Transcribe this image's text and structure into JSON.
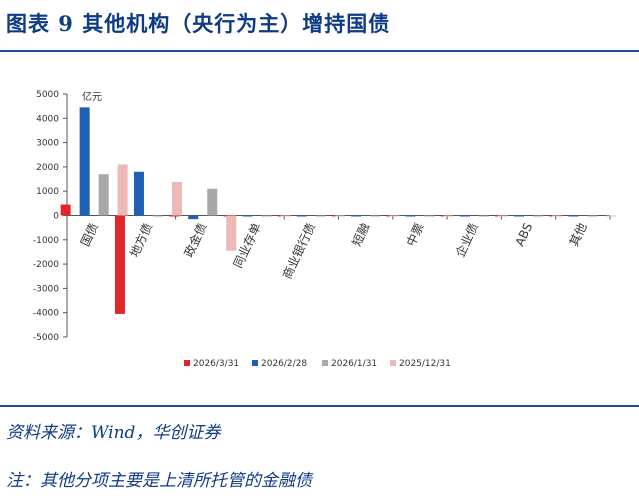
{
  "figure": {
    "title": "图表 9    其他机构（央行为主）增持国债",
    "source": "资料来源：Wind，华创证券",
    "note": "注：其他分项主要是上清所托管的金融债"
  },
  "chart_data": {
    "type": "bar",
    "unit_label": "亿元",
    "categories": [
      "国债",
      "地方债",
      "政金债",
      "同业存单",
      "商业银行债",
      "短融",
      "中票",
      "企业债",
      "ABS",
      "其他"
    ],
    "series": [
      {
        "name": "2026/3/31",
        "color": "#e0262a",
        "values": [
          450,
          -4050,
          -30,
          -10,
          -30,
          -10,
          -10,
          -30,
          -10,
          -30
        ]
      },
      {
        "name": "2026/2/28",
        "color": "#1f5fb4",
        "values": [
          4450,
          1800,
          -150,
          -10,
          -30,
          -10,
          -10,
          -10,
          -30,
          -10
        ]
      },
      {
        "name": "2026/1/31",
        "color": "#a8a8a8",
        "values": [
          1700,
          -20,
          1100,
          -10,
          -20,
          -10,
          -10,
          -10,
          -20,
          -10
        ]
      },
      {
        "name": "2025/12/31",
        "color": "#ecb8b8",
        "values": [
          2100,
          1380,
          -1450,
          -10,
          -20,
          -10,
          -10,
          -10,
          -10,
          -10
        ]
      }
    ],
    "ylim": [
      -5000,
      5000
    ],
    "yticks": [
      -5000,
      -4000,
      -3000,
      -2000,
      -1000,
      0,
      1000,
      2000,
      3000,
      4000,
      5000
    ],
    "grid": false,
    "legend": "bottom"
  }
}
